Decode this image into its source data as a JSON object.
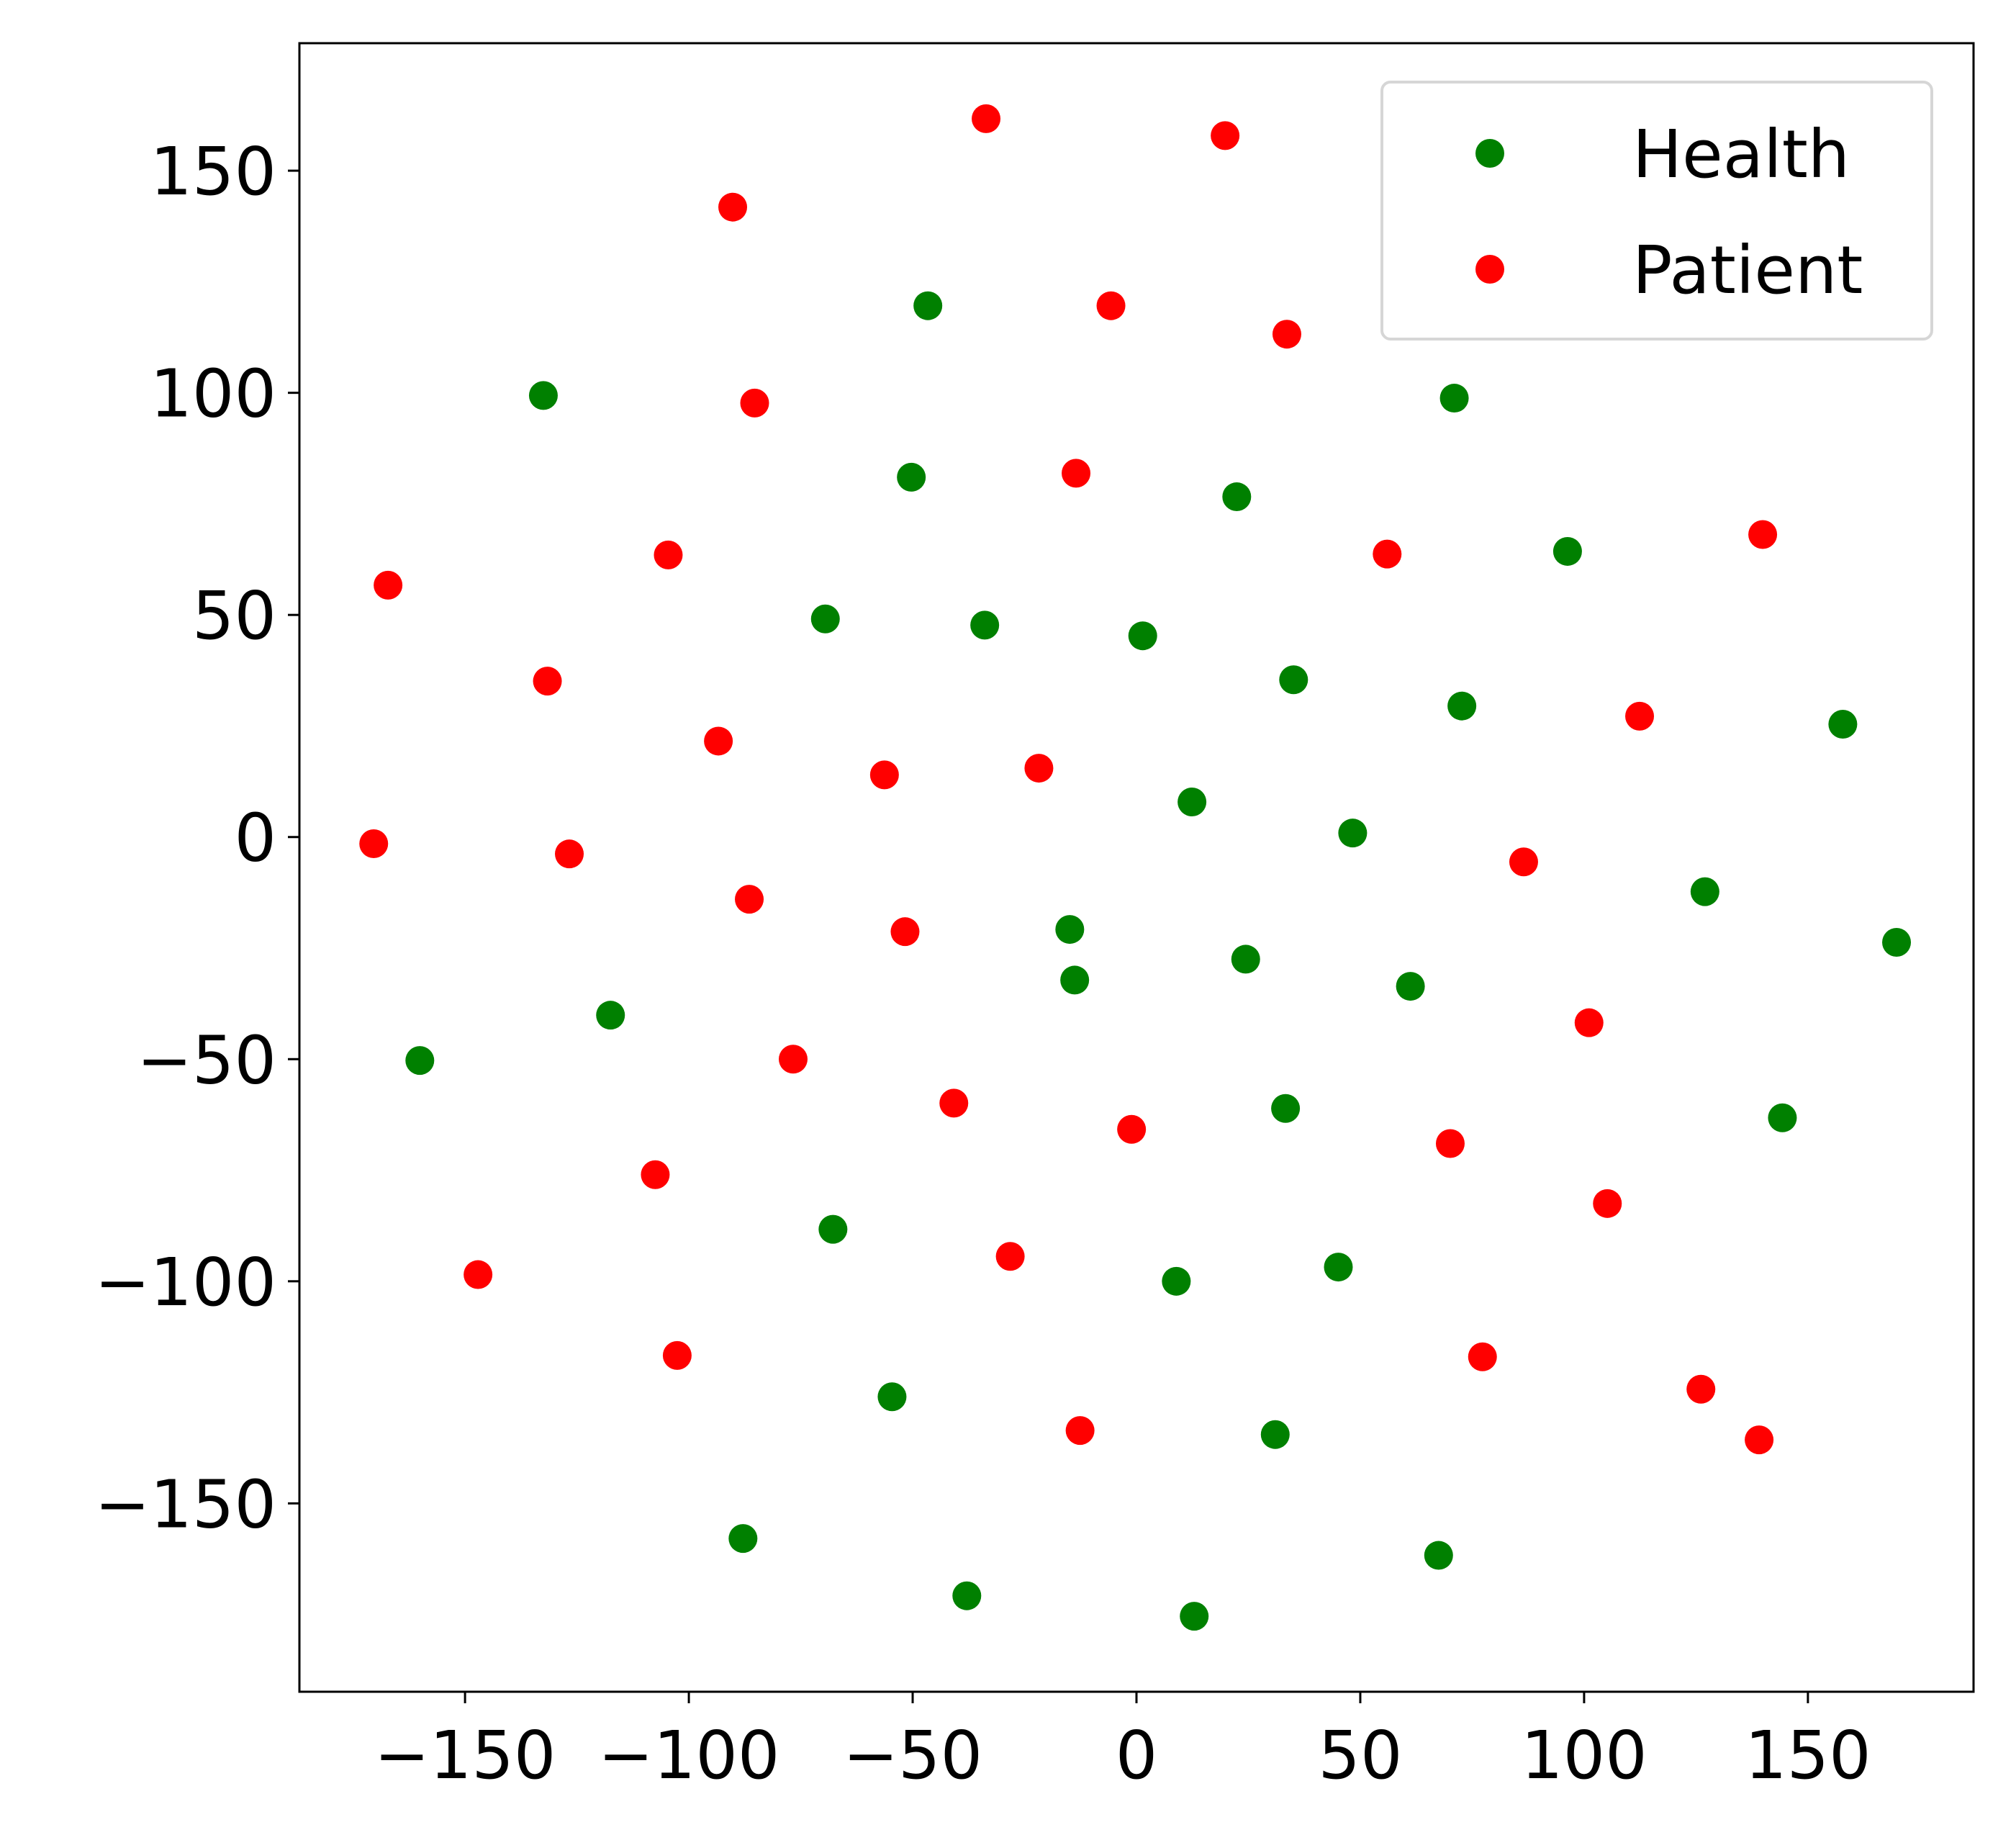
{
  "chart_data": {
    "type": "scatter",
    "xlim": [
      -187,
      187
    ],
    "ylim": [
      -192.4,
      178.7
    ],
    "xticks": [
      {
        "value": -150,
        "label": "−150"
      },
      {
        "value": -100,
        "label": "−100"
      },
      {
        "value": -50,
        "label": "−50"
      },
      0,
      50,
      100,
      150
    ],
    "yticks": [
      {
        "value": -150,
        "label": "−150"
      },
      {
        "value": -100,
        "label": "−100"
      },
      {
        "value": -50,
        "label": "−50"
      },
      0,
      50,
      100,
      150
    ],
    "legend": "upper right",
    "series": [
      {
        "name": "Health",
        "color": "#008000",
        "x": [
          -46.6,
          -132.5,
          71.0,
          -50.3,
          22.4,
          96.3,
          -69.5,
          -33.9,
          1.4,
          35.1,
          72.7,
          157.8,
          12.4,
          48.3,
          127.0,
          -14.9,
          169.8,
          24.4,
          -13.8,
          61.2,
          -117.5,
          -160.1,
          33.3,
          144.3,
          -67.8,
          45.1,
          8.9,
          -54.6,
          31.0,
          67.5,
          -87.9,
          -37.9,
          12.9
        ],
        "values": [
          119.6,
          99.4,
          98.8,
          81.0,
          76.6,
          64.3,
          49.1,
          47.7,
          45.3,
          35.4,
          29.5,
          25.4,
          7.9,
          0.9,
          -12.3,
          -20.8,
          -23.7,
          -27.5,
          -32.2,
          -33.6,
          -40.1,
          -50.3,
          -61.1,
          -63.2,
          -88.3,
          -96.8,
          -100.0,
          -126.0,
          -134.5,
          -161.7,
          -157.9,
          -170.8,
          -175.4
        ]
      },
      {
        "name": "Patient",
        "color": "#ff0000",
        "x": [
          -33.6,
          19.8,
          -90.2,
          -5.7,
          33.6,
          -85.3,
          -13.5,
          -104.6,
          56.0,
          139.9,
          -167.2,
          -131.6,
          -93.4,
          112.4,
          -56.3,
          -21.8,
          -170.4,
          -126.7,
          86.5,
          -86.5,
          -51.7,
          101.1,
          -76.7,
          -40.8,
          -1.1,
          70.1,
          -107.5,
          105.2,
          -147.1,
          -28.2,
          -102.6,
          77.3,
          126.1,
          -12.6,
          139.1
        ],
        "values": [
          161.7,
          157.9,
          141.8,
          119.6,
          113.2,
          97.7,
          81.9,
          63.5,
          63.7,
          68.1,
          56.7,
          35.1,
          21.6,
          27.2,
          14.0,
          15.5,
          -1.5,
          -3.8,
          -5.6,
          -14.0,
          -21.3,
          -41.8,
          -50.0,
          -59.9,
          -65.8,
          -69.0,
          -76.0,
          -82.5,
          -98.5,
          -94.4,
          -116.7,
          -117.0,
          -124.3,
          -133.6,
          -135.7
        ]
      }
    ]
  }
}
